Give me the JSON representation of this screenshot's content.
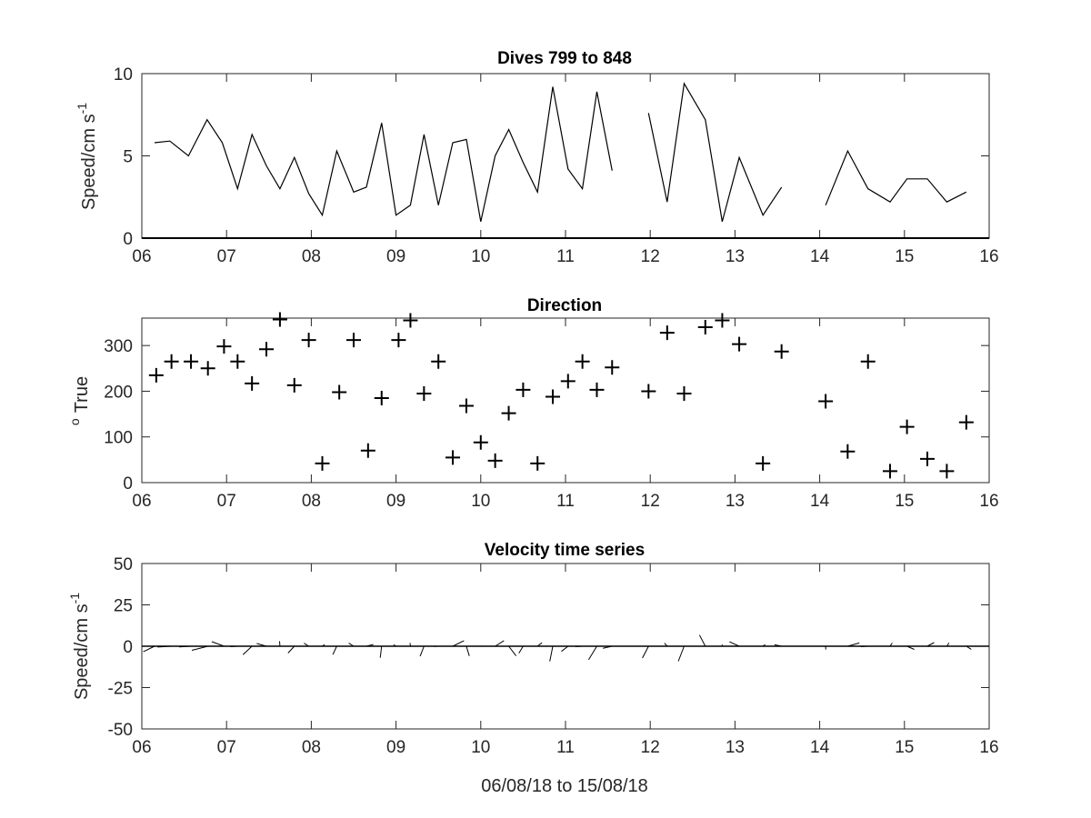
{
  "chart_data": [
    {
      "type": "line",
      "title": "Dives 799 to 848",
      "ylabel": "Speed/cm s",
      "ylabel_sup": "-1",
      "xlim": [
        6,
        16
      ],
      "ylim": [
        0,
        10
      ],
      "xticks": [
        "06",
        "07",
        "08",
        "09",
        "10",
        "11",
        "12",
        "13",
        "14",
        "15",
        "16"
      ],
      "yticks": [
        "0",
        "5",
        "10"
      ],
      "segments": [
        [
          [
            6.15,
            5.8
          ],
          [
            6.33,
            5.9
          ],
          [
            6.55,
            5.0
          ],
          [
            6.77,
            7.2
          ],
          [
            6.95,
            5.8
          ],
          [
            7.13,
            3.0
          ],
          [
            7.3,
            6.3
          ],
          [
            7.47,
            4.4
          ],
          [
            7.63,
            3.0
          ],
          [
            7.8,
            4.9
          ],
          [
            7.97,
            2.7
          ],
          [
            8.13,
            1.4
          ],
          [
            8.3,
            5.3
          ],
          [
            8.5,
            2.8
          ],
          [
            8.65,
            3.1
          ],
          [
            8.83,
            7.0
          ],
          [
            9.0,
            1.4
          ],
          [
            9.17,
            2.0
          ],
          [
            9.33,
            6.3
          ],
          [
            9.5,
            2.0
          ],
          [
            9.67,
            5.8
          ],
          [
            9.83,
            6.0
          ],
          [
            10.0,
            1.0
          ],
          [
            10.17,
            5.0
          ],
          [
            10.33,
            6.6
          ],
          [
            10.5,
            4.6
          ],
          [
            10.67,
            2.8
          ],
          [
            10.85,
            9.2
          ],
          [
            11.03,
            4.2
          ],
          [
            11.2,
            3.0
          ],
          [
            11.37,
            8.9
          ],
          [
            11.55,
            4.1
          ]
        ],
        [
          [
            11.98,
            7.6
          ],
          [
            12.2,
            2.2
          ],
          [
            12.4,
            9.4
          ],
          [
            12.65,
            7.2
          ],
          [
            12.85,
            1.0
          ],
          [
            13.05,
            4.9
          ],
          [
            13.33,
            1.4
          ],
          [
            13.55,
            3.1
          ]
        ],
        [
          [
            14.07,
            2.0
          ],
          [
            14.33,
            5.3
          ],
          [
            14.57,
            3.0
          ],
          [
            14.83,
            2.2
          ],
          [
            15.03,
            3.6
          ],
          [
            15.27,
            3.6
          ],
          [
            15.5,
            2.2
          ],
          [
            15.73,
            2.8
          ]
        ]
      ]
    },
    {
      "type": "scatter",
      "title": "Direction",
      "ylabel": "True",
      "ylabel_sup": "o",
      "xlim": [
        6,
        16
      ],
      "ylim": [
        0,
        360
      ],
      "xticks": [
        "06",
        "07",
        "08",
        "09",
        "10",
        "11",
        "12",
        "13",
        "14",
        "15",
        "16"
      ],
      "yticks": [
        "0",
        "100",
        "200",
        "300"
      ],
      "points": [
        [
          6.17,
          235
        ],
        [
          6.35,
          265
        ],
        [
          6.58,
          265
        ],
        [
          6.78,
          250
        ],
        [
          6.97,
          298
        ],
        [
          7.13,
          265
        ],
        [
          7.3,
          217
        ],
        [
          7.47,
          292
        ],
        [
          7.63,
          357
        ],
        [
          7.8,
          213
        ],
        [
          7.97,
          312
        ],
        [
          8.13,
          42
        ],
        [
          8.33,
          198
        ],
        [
          8.5,
          312
        ],
        [
          8.67,
          70
        ],
        [
          8.83,
          185
        ],
        [
          9.03,
          312
        ],
        [
          9.17,
          355
        ],
        [
          9.33,
          195
        ],
        [
          9.5,
          265
        ],
        [
          9.67,
          55
        ],
        [
          9.83,
          168
        ],
        [
          10.0,
          88
        ],
        [
          10.17,
          48
        ],
        [
          10.33,
          152
        ],
        [
          10.5,
          203
        ],
        [
          10.67,
          42
        ],
        [
          10.85,
          188
        ],
        [
          11.03,
          222
        ],
        [
          11.2,
          265
        ],
        [
          11.37,
          203
        ],
        [
          11.55,
          252
        ],
        [
          11.98,
          200
        ],
        [
          12.2,
          328
        ],
        [
          12.4,
          195
        ],
        [
          12.65,
          340
        ],
        [
          12.85,
          355
        ],
        [
          13.05,
          303
        ],
        [
          13.33,
          42
        ],
        [
          13.55,
          287
        ],
        [
          14.07,
          178
        ],
        [
          14.33,
          68
        ],
        [
          14.57,
          265
        ],
        [
          14.83,
          25
        ],
        [
          15.03,
          122
        ],
        [
          15.27,
          52
        ],
        [
          15.5,
          25
        ],
        [
          15.73,
          132
        ]
      ]
    },
    {
      "type": "quiver",
      "title": "Velocity time series",
      "ylabel": "Speed/cm s",
      "ylabel_sup": "-1",
      "xlabel": "06/08/18 to 15/08/18",
      "xlim": [
        6,
        16
      ],
      "ylim": [
        -50,
        50
      ],
      "xticks": [
        "06",
        "07",
        "08",
        "09",
        "10",
        "11",
        "12",
        "13",
        "14",
        "15",
        "16"
      ],
      "yticks": [
        "-50",
        "-25",
        "0",
        "25",
        "50"
      ],
      "vectors": [
        [
          6.15,
          5.8,
          235
        ],
        [
          6.35,
          5.9,
          265
        ],
        [
          6.58,
          5.0,
          265
        ],
        [
          6.78,
          7.2,
          250
        ],
        [
          6.97,
          5.8,
          298
        ],
        [
          7.13,
          3.0,
          265
        ],
        [
          7.3,
          6.3,
          217
        ],
        [
          7.47,
          4.4,
          292
        ],
        [
          7.63,
          3.0,
          357
        ],
        [
          7.8,
          4.9,
          213
        ],
        [
          7.97,
          2.7,
          312
        ],
        [
          8.13,
          1.4,
          42
        ],
        [
          8.3,
          5.3,
          198
        ],
        [
          8.5,
          2.8,
          312
        ],
        [
          8.65,
          3.1,
          70
        ],
        [
          8.83,
          7.0,
          185
        ],
        [
          9.0,
          1.4,
          312
        ],
        [
          9.17,
          2.0,
          355
        ],
        [
          9.33,
          6.3,
          195
        ],
        [
          9.5,
          2.0,
          265
        ],
        [
          9.67,
          5.8,
          55
        ],
        [
          9.83,
          6.0,
          168
        ],
        [
          10.0,
          1.0,
          88
        ],
        [
          10.17,
          5.0,
          48
        ],
        [
          10.33,
          6.6,
          152
        ],
        [
          10.5,
          4.6,
          203
        ],
        [
          10.67,
          2.8,
          42
        ],
        [
          10.85,
          9.2,
          188
        ],
        [
          11.03,
          4.2,
          222
        ],
        [
          11.2,
          3.0,
          265
        ],
        [
          11.37,
          8.9,
          203
        ],
        [
          11.55,
          4.1,
          252
        ],
        [
          11.98,
          7.6,
          200
        ],
        [
          12.2,
          2.2,
          328
        ],
        [
          12.4,
          9.4,
          195
        ],
        [
          12.65,
          7.2,
          340
        ],
        [
          12.85,
          1.0,
          355
        ],
        [
          13.05,
          4.9,
          303
        ],
        [
          13.33,
          1.4,
          42
        ],
        [
          13.55,
          3.1,
          287
        ],
        [
          14.07,
          2.0,
          178
        ],
        [
          14.33,
          5.3,
          68
        ],
        [
          14.57,
          3.0,
          265
        ],
        [
          14.83,
          2.2,
          25
        ],
        [
          15.03,
          3.6,
          122
        ],
        [
          15.27,
          3.6,
          52
        ],
        [
          15.5,
          2.2,
          25
        ],
        [
          15.73,
          2.8,
          132
        ]
      ]
    }
  ]
}
